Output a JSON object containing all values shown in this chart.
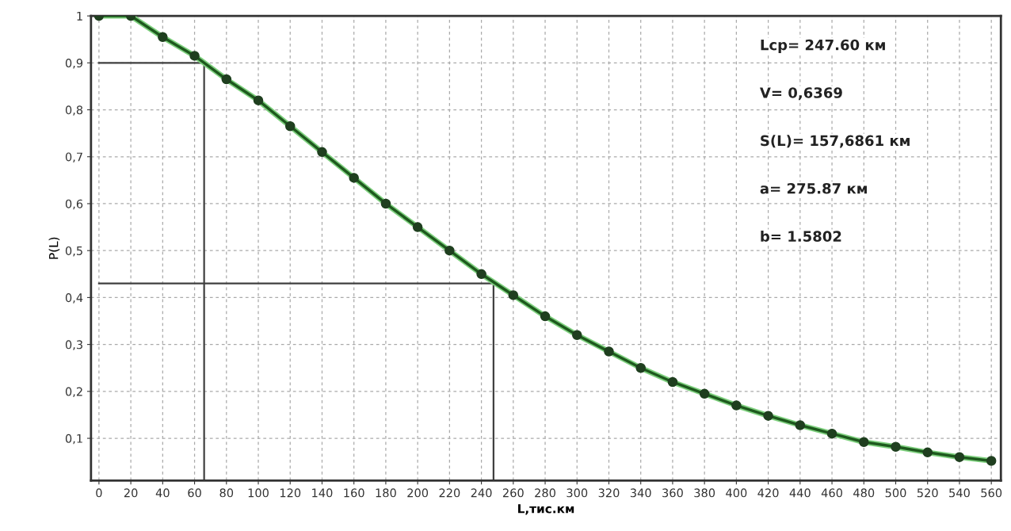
{
  "chart_data": {
    "type": "line",
    "xlabel": "L,тис.км",
    "ylabel": "P(L)",
    "x": [
      0,
      20,
      40,
      60,
      80,
      100,
      120,
      140,
      160,
      180,
      200,
      220,
      240,
      260,
      280,
      300,
      320,
      340,
      360,
      380,
      400,
      420,
      440,
      460,
      480,
      500,
      520,
      540,
      560
    ],
    "series": [
      {
        "color": "#1e5a1e",
        "marker": "circle",
        "values": [
          1.0,
          1.0,
          0.955,
          0.915,
          0.865,
          0.82,
          0.765,
          0.71,
          0.655,
          0.6,
          0.55,
          0.5,
          0.45,
          0.405,
          0.36,
          0.32,
          0.285,
          0.25,
          0.22,
          0.195,
          0.17,
          0.148,
          0.128,
          0.11,
          0.092,
          0.082,
          0.07,
          0.06,
          0.052
        ]
      },
      {
        "color": "#404040",
        "marker": "none",
        "x": [
          0,
          66,
          66
        ],
        "values": [
          0.9,
          0.9,
          0.01
        ]
      },
      {
        "color": "#404040",
        "marker": "none",
        "x": [
          0,
          247.6,
          247.6
        ],
        "values": [
          0.43,
          0.43,
          0.01
        ]
      }
    ],
    "xlim": [
      -5,
      566
    ],
    "ylim": [
      0.01,
      1
    ],
    "xticks": [
      0,
      20,
      40,
      60,
      80,
      100,
      120,
      140,
      160,
      180,
      200,
      220,
      240,
      260,
      280,
      300,
      320,
      340,
      360,
      380,
      400,
      420,
      440,
      460,
      480,
      500,
      520,
      540,
      560
    ],
    "yticks": [
      {
        "value": 0.1,
        "label": "0,1"
      },
      {
        "value": 0.2,
        "label": "0,2"
      },
      {
        "value": 0.3,
        "label": "0,3"
      },
      {
        "value": 0.4,
        "label": "0,4"
      },
      {
        "value": 0.5,
        "label": "0,5"
      },
      {
        "value": 0.6,
        "label": "0,6"
      },
      {
        "value": 0.7,
        "label": "0,7"
      },
      {
        "value": 0.8,
        "label": "0,8"
      },
      {
        "value": 0.9,
        "label": "0,9"
      },
      1
    ],
    "grid": true,
    "line_style": "solid",
    "annotations": [
      "Lcp= 247.60 км",
      "V= 0,6369",
      "S(L)= 157,6861 км",
      "a= 275.87 км",
      "b= 1.5802"
    ]
  }
}
